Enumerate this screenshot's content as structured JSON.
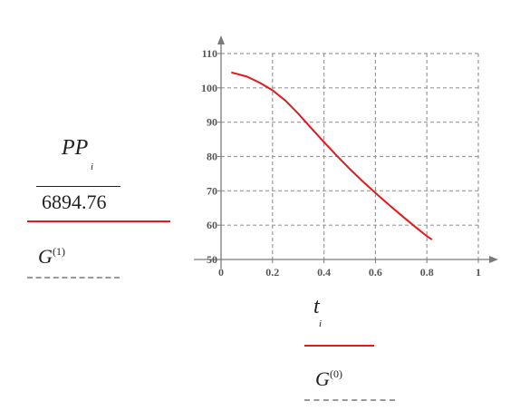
{
  "chart_data": {
    "type": "line",
    "x_ticks": [
      "0",
      "0.2",
      "0.4",
      "0.6",
      "0.8",
      "1"
    ],
    "y_ticks": [
      "50",
      "60",
      "70",
      "80",
      "90",
      "100",
      "110"
    ],
    "xlim": [
      0,
      1
    ],
    "ylim": [
      50,
      110
    ],
    "grid": true,
    "series": [
      {
        "color": "#e21a1a",
        "x": [
          0.04,
          0.1,
          0.15,
          0.2,
          0.25,
          0.3,
          0.35,
          0.4,
          0.45,
          0.5,
          0.55,
          0.6,
          0.65,
          0.7,
          0.75,
          0.8,
          0.82
        ],
        "values": [
          104.5,
          103.3,
          101.5,
          99.3,
          96.3,
          92.5,
          88.3,
          84.2,
          80.2,
          76.4,
          72.8,
          69.4,
          66.1,
          62.9,
          59.8,
          56.8,
          55.8
        ]
      }
    ]
  },
  "y_expression": {
    "numerator": "PP",
    "subscript": "i",
    "denominator": "6894.76",
    "trace_name": "G",
    "trace_sup": "(1)",
    "line_color": "#e21a1a"
  },
  "x_expression": {
    "variable": "t",
    "subscript": "i",
    "trace_name": "G",
    "trace_sup": "(0)",
    "line_color": "#e21a1a"
  }
}
